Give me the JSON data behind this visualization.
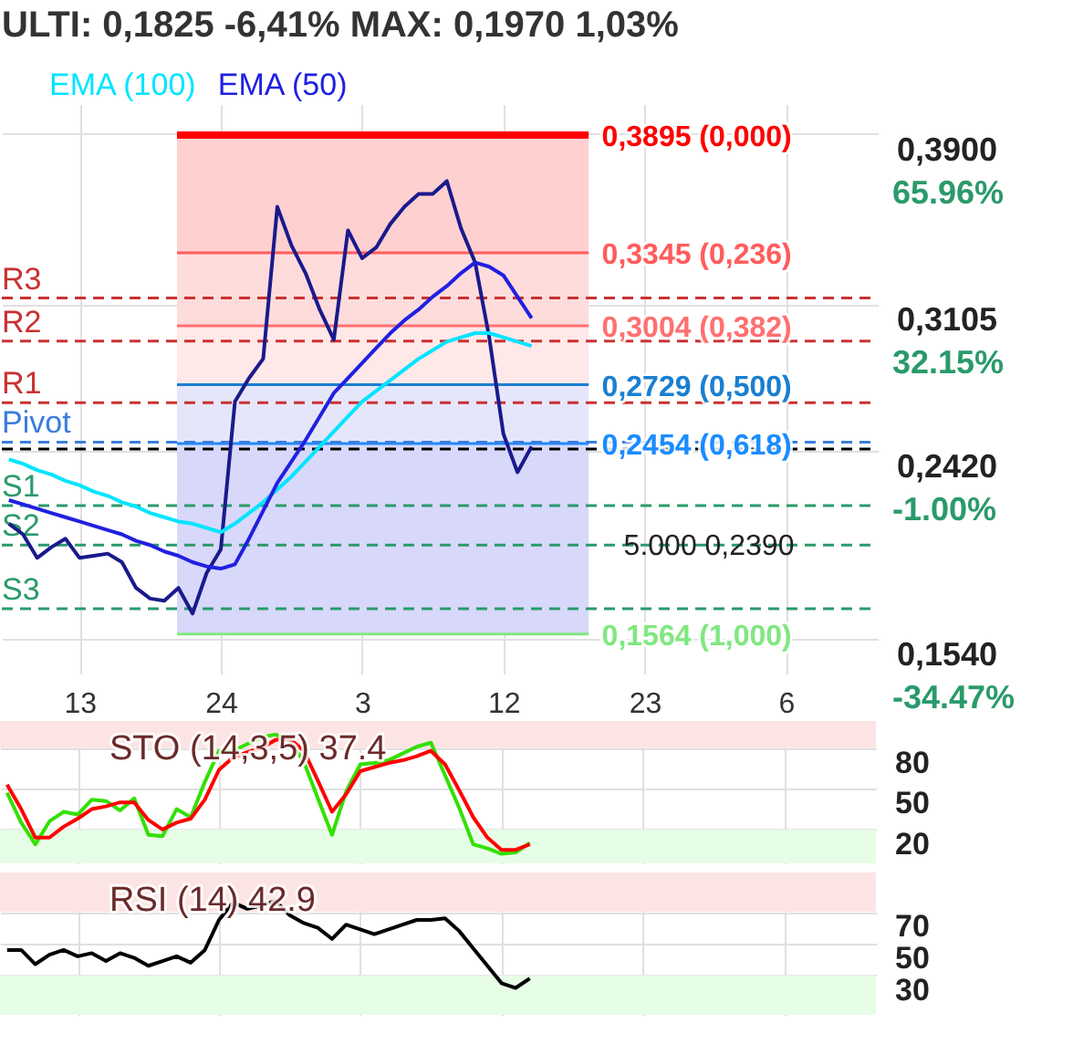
{
  "chart_data": [
    {
      "type": "line",
      "title": "ULTI: 0,1825 -6,41% MAX: 0,1970 1,03%",
      "legend": "top left",
      "grid": true,
      "categories": [
        null,
        null,
        null,
        null,
        null,
        "13",
        null,
        null,
        null,
        null,
        null,
        null,
        null,
        null,
        null,
        "24",
        null,
        null,
        null,
        null,
        null,
        null,
        null,
        null,
        null,
        "3",
        null,
        null,
        null,
        null,
        null,
        null,
        null,
        null,
        null,
        "12",
        null,
        null,
        null,
        null,
        null,
        null,
        null,
        null,
        null,
        "23",
        null,
        null,
        null,
        null,
        null,
        null,
        null,
        null,
        null,
        "6",
        null,
        null,
        null,
        null,
        null,
        null
      ],
      "ylim": [
        0.138,
        0.404
      ],
      "yticks": [
        {
          "value": 0.39,
          "label": "0,3900"
        },
        {
          "value": 0.3105,
          "label": "0,3105"
        },
        {
          "value": 0.242,
          "label": "0,2420"
        },
        {
          "value": 0.154,
          "label": "0,1540"
        }
      ],
      "series": [
        {
          "color": "#1a1a8c",
          "values": [
            0.208,
            0.203,
            0.192,
            0.197,
            0.201,
            0.192,
            0.193,
            0.194,
            0.19,
            0.178,
            0.173,
            0.172,
            0.178,
            0.166,
            0.185,
            0.196,
            0.265,
            0.276,
            0.285,
            0.356,
            0.338,
            0.325,
            0.308,
            0.294,
            0.345,
            0.332,
            0.337,
            0.348,
            0.356,
            0.362,
            0.362,
            0.368,
            0.346,
            0.33,
            0.295,
            0.25,
            0.232,
            0.244,
            null,
            null,
            null,
            null,
            null,
            null,
            null,
            null,
            null,
            null,
            null,
            null,
            null,
            null,
            null,
            null,
            null,
            null,
            null,
            null,
            null,
            null,
            null,
            null
          ]
        },
        {
          "name": "EMA (100)",
          "color": "#00e5ff",
          "values": [
            0.238,
            0.236,
            0.233,
            0.231,
            0.228,
            0.226,
            0.223,
            0.221,
            0.218,
            0.216,
            0.213,
            0.211,
            0.209,
            0.208,
            0.206,
            0.204,
            0.208,
            0.213,
            0.218,
            0.224,
            0.23,
            0.237,
            0.244,
            0.251,
            0.258,
            0.265,
            0.27,
            0.275,
            0.28,
            0.285,
            0.289,
            0.293,
            0.295,
            0.297,
            0.297,
            0.295,
            0.293,
            0.291,
            null,
            null,
            null,
            null,
            null,
            null,
            null,
            null,
            null,
            null,
            null,
            null,
            null,
            null,
            null,
            null,
            null,
            null,
            null,
            null,
            null,
            null,
            null,
            null
          ]
        },
        {
          "name": "EMA (50)",
          "color": "#2020e0",
          "values": [
            0.219,
            0.217,
            0.215,
            0.213,
            0.211,
            0.209,
            0.207,
            0.205,
            0.203,
            0.2,
            0.198,
            0.195,
            0.193,
            0.19,
            0.188,
            0.187,
            0.189,
            0.201,
            0.214,
            0.227,
            0.237,
            0.247,
            0.258,
            0.269,
            0.276,
            0.283,
            0.29,
            0.297,
            0.303,
            0.308,
            0.314,
            0.319,
            0.325,
            0.33,
            0.328,
            0.324,
            0.314,
            0.304,
            null,
            null,
            null,
            null,
            null,
            null,
            null,
            null,
            null,
            null,
            null,
            null,
            null,
            null,
            null,
            null,
            null,
            null,
            null,
            null,
            null,
            null,
            null,
            null
          ]
        }
      ],
      "bands": [
        {
          "axis": "y",
          "from": 0.3345,
          "to": 0.3895,
          "color": "#ffd0d0"
        },
        {
          "axis": "y",
          "from": 0.3004,
          "to": 0.3345,
          "color": "#ffdcdc"
        },
        {
          "axis": "y",
          "from": 0.2729,
          "to": 0.3004,
          "color": "#ffe8e8"
        },
        {
          "axis": "y",
          "from": 0.2454,
          "to": 0.2729,
          "color": "#e6e6fb"
        },
        {
          "axis": "y",
          "from": 0.1564,
          "to": 0.2454,
          "color": "#d8d8fb"
        }
      ],
      "ref_lines": [
        {
          "axis": "y",
          "value": 0.3895,
          "label": "0,3895 (0,000)",
          "color": "#ff0000",
          "line_style": "solid"
        },
        {
          "axis": "y",
          "value": 0.3345,
          "label": "0,3345 (0,236)",
          "color": "#ff5c5c",
          "line_style": "solid"
        },
        {
          "axis": "y",
          "value": 0.3004,
          "label": "0,3004 (0,382)",
          "color": "#ff7070",
          "line_style": "solid"
        },
        {
          "axis": "y",
          "value": 0.2729,
          "label": "0,2729 (0,500)",
          "color": "#1a7fd0",
          "line_style": "solid"
        },
        {
          "axis": "y",
          "value": 0.2454,
          "label": "0,2454 (0,618)",
          "color": "#1a8cff",
          "line_style": "solid"
        },
        {
          "axis": "y",
          "value": 0.1564,
          "label": "0,1564 (1,000)",
          "color": "#80e880",
          "line_style": "solid"
        },
        {
          "axis": "y",
          "value": 0.3134,
          "label": "R3",
          "color": "#c83232",
          "line_style": "dashed"
        },
        {
          "axis": "y",
          "value": 0.2933,
          "label": "R2",
          "color": "#c83232",
          "line_style": "dashed"
        },
        {
          "axis": "y",
          "value": 0.2645,
          "label": "R1",
          "color": "#c83232",
          "line_style": "dashed"
        },
        {
          "axis": "y",
          "value": 0.2461,
          "label": "Pivot",
          "color": "#3b7ddd",
          "line_style": "dashed"
        },
        {
          "axis": "y",
          "value": 0.2164,
          "label": "S1",
          "color": "#2a9a6a",
          "line_style": "dashed"
        },
        {
          "axis": "y",
          "value": 0.198,
          "label": "S2",
          "color": "#2a9a6a",
          "line_style": "dashed"
        },
        {
          "axis": "y",
          "value": 0.1683,
          "label": "S3",
          "color": "#2a9a6a",
          "line_style": "dashed"
        },
        {
          "axis": "y",
          "value": 0.2429,
          "color": "#000000",
          "line_style": "dashed"
        }
      ],
      "annotations": [
        "65.96%",
        "32.15%",
        "-1.00%",
        "-34.47%",
        "5.000 0,2390"
      ]
    },
    {
      "type": "line",
      "title": "STO (14,3,5) 37.4",
      "grid": true,
      "tick_labels": "y",
      "categories": [
        null,
        null,
        null,
        null,
        null,
        "13",
        null,
        null,
        null,
        null,
        null,
        null,
        null,
        null,
        null,
        "24",
        null,
        null,
        null,
        null,
        null,
        null,
        null,
        null,
        null,
        "3",
        null,
        null,
        null,
        null,
        null,
        null,
        null,
        null,
        null,
        "12",
        null,
        null,
        null,
        null,
        null,
        null,
        null,
        null,
        null,
        "23",
        null,
        null,
        null,
        null,
        null,
        null,
        null,
        null,
        null,
        "6",
        null,
        null,
        null,
        null,
        null,
        null
      ],
      "ylim": [
        -5,
        100
      ],
      "yticks": [
        20,
        50,
        80
      ],
      "series": [
        {
          "color": "#33e000",
          "values": [
            47,
            25,
            9,
            26,
            33,
            31,
            42,
            41,
            34,
            43,
            16,
            15,
            35,
            29,
            55,
            78,
            78,
            83,
            88,
            90,
            86,
            70,
            43,
            16,
            48,
            68,
            69,
            71,
            76,
            81,
            84,
            60,
            36,
            9,
            6,
            2,
            3,
            10,
            null,
            null,
            null,
            null,
            null,
            null,
            null,
            null,
            null,
            null,
            null,
            null,
            null,
            null,
            null,
            null,
            null,
            null,
            null,
            null,
            null,
            null,
            null,
            null
          ]
        },
        {
          "color": "#ff0000",
          "values": [
            53,
            35,
            14,
            14,
            22,
            28,
            35,
            37,
            40,
            40,
            27,
            20,
            25,
            28,
            42,
            64,
            73,
            77,
            80,
            86,
            87,
            78,
            56,
            33,
            46,
            63,
            66,
            69,
            71,
            74,
            78,
            68,
            49,
            29,
            14,
            5,
            5,
            9,
            null,
            null,
            null,
            null,
            null,
            null,
            null,
            null,
            null,
            null,
            null,
            null,
            null,
            null,
            null,
            null,
            null,
            null,
            null,
            null,
            null,
            null,
            null,
            null
          ]
        }
      ],
      "bands": [
        {
          "axis": "y",
          "from": 80,
          "to": 100,
          "color": "#fde4e4"
        },
        {
          "axis": "y",
          "from": -5,
          "to": 20,
          "color": "#e6fde6"
        }
      ]
    },
    {
      "type": "line",
      "title": "RSI (14) 42.9",
      "grid": true,
      "tick_labels": "y",
      "categories": [
        null,
        null,
        null,
        null,
        null,
        "13",
        null,
        null,
        null,
        null,
        null,
        null,
        null,
        null,
        null,
        "24",
        null,
        null,
        null,
        null,
        null,
        null,
        null,
        null,
        null,
        "3",
        null,
        null,
        null,
        null,
        null,
        null,
        null,
        null,
        null,
        "12",
        null,
        null,
        null,
        null,
        null,
        null,
        null,
        null,
        null,
        "23",
        null,
        null,
        null,
        null,
        null,
        null,
        null,
        null,
        null,
        "6",
        null,
        null,
        null,
        null,
        null,
        null
      ],
      "ylim": [
        5,
        95
      ],
      "yticks": [
        30,
        50,
        70
      ],
      "series": [
        {
          "color": "#000000",
          "values": [
            46,
            46,
            37,
            43,
            46,
            42,
            44,
            39,
            44,
            41,
            36,
            39,
            42,
            38,
            46,
            65,
            76,
            72,
            74,
            77,
            68,
            63,
            60,
            53,
            62,
            59,
            56,
            59,
            62,
            65,
            65,
            66,
            58,
            47,
            36,
            25,
            22,
            28,
            null,
            null,
            null,
            null,
            null,
            null,
            null,
            null,
            null,
            null,
            null,
            null,
            null,
            null,
            null,
            null,
            null,
            null,
            null,
            null,
            null,
            null,
            null,
            null
          ]
        }
      ],
      "bands": [
        {
          "axis": "y",
          "from": 70,
          "to": 95,
          "color": "#fde4e4"
        },
        {
          "axis": "y",
          "from": 5,
          "to": 30,
          "color": "#e6fde6"
        }
      ]
    }
  ]
}
